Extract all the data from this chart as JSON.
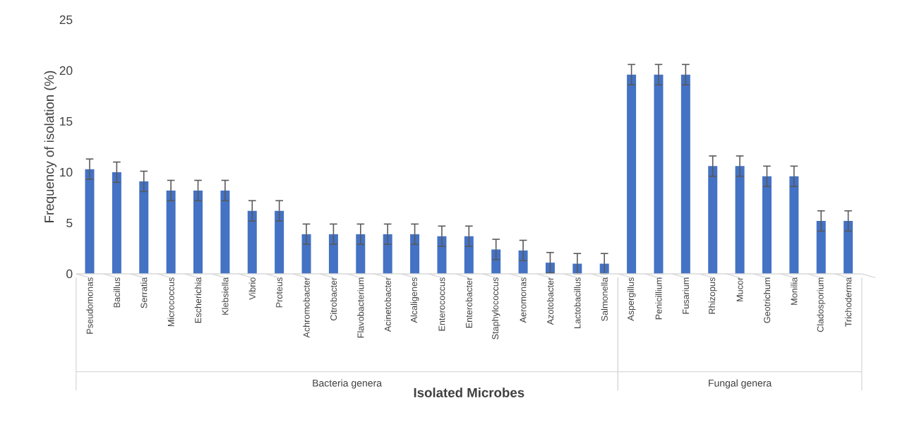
{
  "chart_data": {
    "type": "bar",
    "categories": [
      "Pseudomonas",
      "Bacillus",
      "Serratia",
      "Micrococcus",
      "Escherichia",
      "Klebsiella",
      "Vibrio",
      "Proteus",
      "Achromobacter",
      "Citrobacter",
      "Flavobacterium",
      "Acinetobacter",
      "Alcaligenes",
      "Enterococcus",
      "Enterobacter",
      "Staphylococcus",
      "Aeromonas",
      "Azotobacter",
      "Lactobacillus",
      "Salmonella",
      "Aspergillus",
      "Penicillium",
      "Fusarium",
      "Rhizopus",
      "Mucor",
      "Geotrichum",
      "Monilia",
      "Cladosporium",
      "Trichoderma"
    ],
    "values": [
      10.3,
      10.0,
      9.1,
      8.2,
      8.2,
      8.2,
      6.2,
      6.2,
      3.9,
      3.9,
      3.9,
      3.9,
      3.9,
      3.7,
      3.7,
      2.4,
      2.3,
      1.1,
      1.0,
      1.0,
      19.6,
      19.6,
      19.6,
      10.6,
      10.6,
      9.6,
      9.6,
      5.2,
      5.2
    ],
    "errors": [
      1,
      1,
      1,
      1,
      1,
      1,
      1,
      1,
      1,
      1,
      1,
      1,
      1,
      1,
      1,
      1,
      1,
      1,
      1,
      1,
      1,
      1,
      1,
      1,
      1,
      1,
      1,
      1,
      1
    ],
    "color": "#4472c4",
    "ylim": [
      0,
      25
    ],
    "yticks": [
      0,
      5,
      10,
      15,
      20,
      25
    ],
    "xlabel": "Isolated Microbes",
    "ylabel": "Frequency of isolation (%)",
    "annotations": [
      "Bacteria genera",
      "Fungal genera"
    ]
  }
}
